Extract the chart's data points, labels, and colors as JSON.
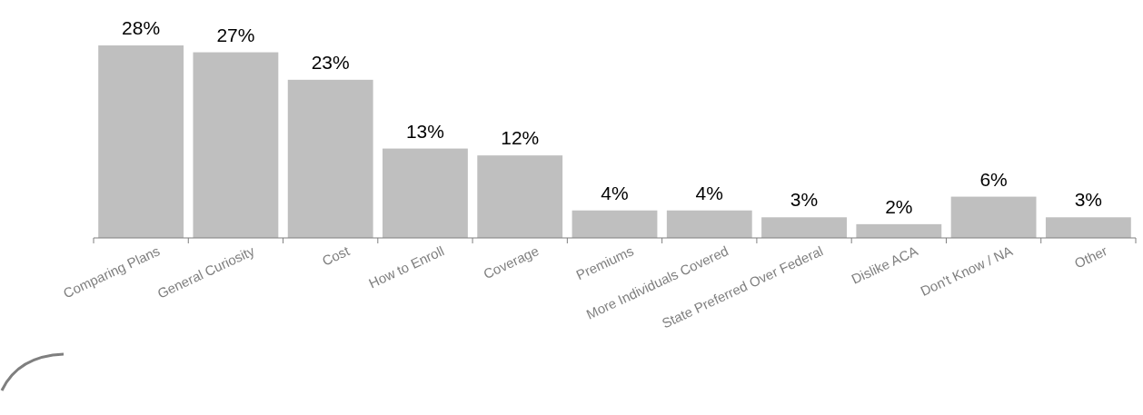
{
  "chart_data": {
    "type": "bar",
    "categories": [
      "Comparing Plans",
      "General Curiosity",
      "Cost",
      "How to Enroll",
      "Coverage",
      "Premiums",
      "More Individuals Covered",
      "State Preferred Over Federal",
      "Dislike ACA",
      "Don't Know / NA",
      "Other"
    ],
    "values": [
      28,
      27,
      23,
      13,
      12,
      4,
      4,
      3,
      2,
      6,
      3
    ],
    "value_labels": [
      "28%",
      "27%",
      "23%",
      "13%",
      "12%",
      "4%",
      "4%",
      "3%",
      "2%",
      "6%",
      "3%"
    ],
    "color": "#bfbfbf"
  }
}
